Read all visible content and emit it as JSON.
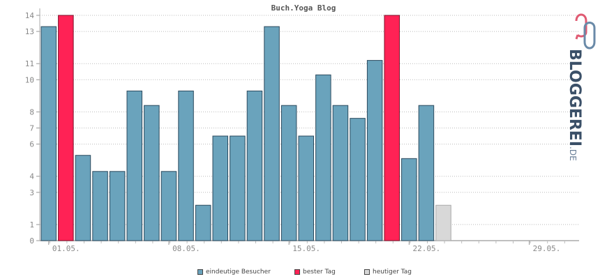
{
  "chart_data": {
    "type": "bar",
    "title": "Buch.Yoga Blog",
    "x_tick_labels": [
      "01.05.",
      "08.05.",
      "15.05.",
      "22.05.",
      "29.05."
    ],
    "y_tick_labels": [
      "0",
      "1",
      "3",
      "4",
      "6",
      "7",
      "8",
      "10",
      "11",
      "13",
      "14"
    ],
    "ylim": [
      0,
      14
    ],
    "grid": true,
    "legend_placement": "bottom",
    "series": [
      {
        "name": "eindeutige Besucher",
        "color": "#6aa3bc",
        "values": [
          13.3,
          14,
          5.3,
          4.3,
          4.3,
          9.3,
          8.4,
          4.3,
          9.3,
          2.2,
          6.5,
          6.5,
          9.3,
          13.3,
          8.4,
          6.5,
          10.3,
          8.4,
          7.6,
          11.2,
          14,
          5.1,
          8.4,
          2.2
        ]
      }
    ],
    "highlight": {
      "best_day_color": "#ff2255",
      "best_day_indices": [
        1,
        20
      ],
      "today_color": "#d8d8d8",
      "today_index": 23
    },
    "legend": [
      {
        "label": "eindeutige Besucher",
        "color": "#6aa3bc"
      },
      {
        "label": "bester Tag",
        "color": "#ff2255"
      },
      {
        "label": "heutiger Tag",
        "color": "#d8d8d8"
      }
    ]
  },
  "brand": {
    "name": "BLOGGEREI",
    "tld": ".DE"
  }
}
